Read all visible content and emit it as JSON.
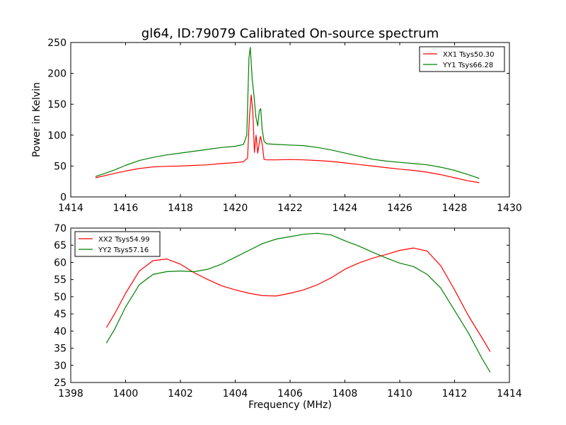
{
  "figure_title": "gl64, ID:79079 Calibrated On-source spectrum",
  "chart_data": [
    {
      "type": "line",
      "title": "gl64, ID:79079 Calibrated On-source spectrum",
      "xlabel": "",
      "ylabel": "Power in Kelvin",
      "xlim": [
        1414,
        1430
      ],
      "ylim": [
        0,
        250
      ],
      "xticks": [
        1414,
        1416,
        1418,
        1420,
        1422,
        1424,
        1426,
        1428,
        1430
      ],
      "yticks": [
        0,
        50,
        100,
        150,
        200,
        250
      ],
      "legend_position": "top-right",
      "grid": false,
      "series": [
        {
          "name": "XX1 Tsys50.30",
          "color": "#ff0000",
          "x": [
            1414.9,
            1415.5,
            1416,
            1416.5,
            1417,
            1417.5,
            1418,
            1418.5,
            1419,
            1419.5,
            1420,
            1420.3,
            1420.45,
            1420.52,
            1420.58,
            1420.64,
            1420.7,
            1420.76,
            1420.82,
            1420.87,
            1420.92,
            1420.98,
            1421.05,
            1421.15,
            1421.5,
            1422,
            1422.5,
            1423,
            1423.5,
            1424,
            1424.5,
            1425,
            1425.5,
            1426,
            1426.5,
            1427,
            1427.5,
            1428,
            1428.5,
            1428.9
          ],
          "y": [
            31,
            37,
            42,
            46,
            48.5,
            49.5,
            50,
            51,
            52,
            54,
            55.5,
            57,
            63,
            130,
            165,
            140,
            72,
            100,
            71,
            85,
            98,
            86,
            61,
            60,
            60,
            60.5,
            60,
            59,
            57.5,
            55,
            52.5,
            50,
            47.5,
            45,
            43,
            40,
            36,
            31,
            26,
            23
          ]
        },
        {
          "name": "YY1 Tsys66.28",
          "color": "#008000",
          "x": [
            1414.9,
            1415.5,
            1416,
            1416.5,
            1417,
            1417.5,
            1418,
            1418.5,
            1419,
            1419.5,
            1420,
            1420.3,
            1420.42,
            1420.5,
            1420.55,
            1420.62,
            1420.68,
            1420.75,
            1420.82,
            1420.88,
            1420.93,
            1420.98,
            1421.05,
            1421.15,
            1421.5,
            1422,
            1422.5,
            1423,
            1423.5,
            1424,
            1424.5,
            1425,
            1425.5,
            1426,
            1426.5,
            1427,
            1427.5,
            1428,
            1428.5,
            1428.9
          ],
          "y": [
            33,
            42,
            51,
            59,
            64,
            68,
            71,
            74,
            77,
            80,
            82,
            85,
            100,
            225,
            242,
            190,
            165,
            130,
            115,
            140,
            143,
            110,
            90,
            86,
            85,
            84,
            83,
            80,
            76,
            71,
            66,
            61,
            58,
            56,
            54,
            52,
            48,
            43,
            36,
            30
          ]
        }
      ]
    },
    {
      "type": "line",
      "title": "",
      "xlabel": "Frequency (MHz)",
      "ylabel": "",
      "xlim": [
        1398,
        1414
      ],
      "ylim": [
        25,
        70
      ],
      "xticks": [
        1398,
        1400,
        1402,
        1404,
        1406,
        1408,
        1410,
        1412,
        1414
      ],
      "yticks": [
        25,
        30,
        35,
        40,
        45,
        50,
        55,
        60,
        65,
        70
      ],
      "legend_position": "top-left",
      "grid": false,
      "series": [
        {
          "name": "XX2 Tsys54.99",
          "color": "#ff0000",
          "x": [
            1399.3,
            1399.6,
            1400,
            1400.5,
            1401,
            1401.5,
            1402,
            1402.5,
            1403,
            1403.5,
            1404,
            1404.5,
            1405,
            1405.5,
            1406,
            1406.5,
            1407,
            1407.5,
            1408,
            1408.5,
            1409,
            1409.5,
            1410,
            1410.5,
            1411,
            1411.5,
            1412,
            1412.5,
            1413,
            1413.3
          ],
          "y": [
            41,
            45,
            51,
            57.5,
            60.5,
            61,
            59.5,
            57,
            55,
            53.2,
            52,
            51,
            50.3,
            50.2,
            51,
            52,
            53.5,
            55.5,
            58,
            59.8,
            61.2,
            62.3,
            63.5,
            64.2,
            63.3,
            59,
            52,
            44.5,
            38,
            34
          ]
        },
        {
          "name": "YY2 Tsys57.16",
          "color": "#008000",
          "x": [
            1399.3,
            1399.6,
            1400,
            1400.5,
            1401,
            1401.5,
            1402,
            1402.5,
            1403,
            1403.5,
            1404,
            1404.5,
            1405,
            1405.5,
            1406,
            1406.5,
            1407,
            1407.5,
            1408,
            1408.5,
            1409,
            1409.5,
            1410,
            1410.5,
            1411,
            1411.5,
            1412,
            1412.5,
            1413,
            1413.3
          ],
          "y": [
            36.5,
            40.5,
            47,
            53.5,
            56.5,
            57.3,
            57.5,
            57.3,
            58,
            59.5,
            61.5,
            63.5,
            65.5,
            66.8,
            67.5,
            68.2,
            68.5,
            68,
            66.3,
            64.8,
            63,
            61.3,
            59.8,
            58.8,
            56.5,
            52.5,
            46,
            39.5,
            32,
            28
          ]
        }
      ]
    }
  ]
}
